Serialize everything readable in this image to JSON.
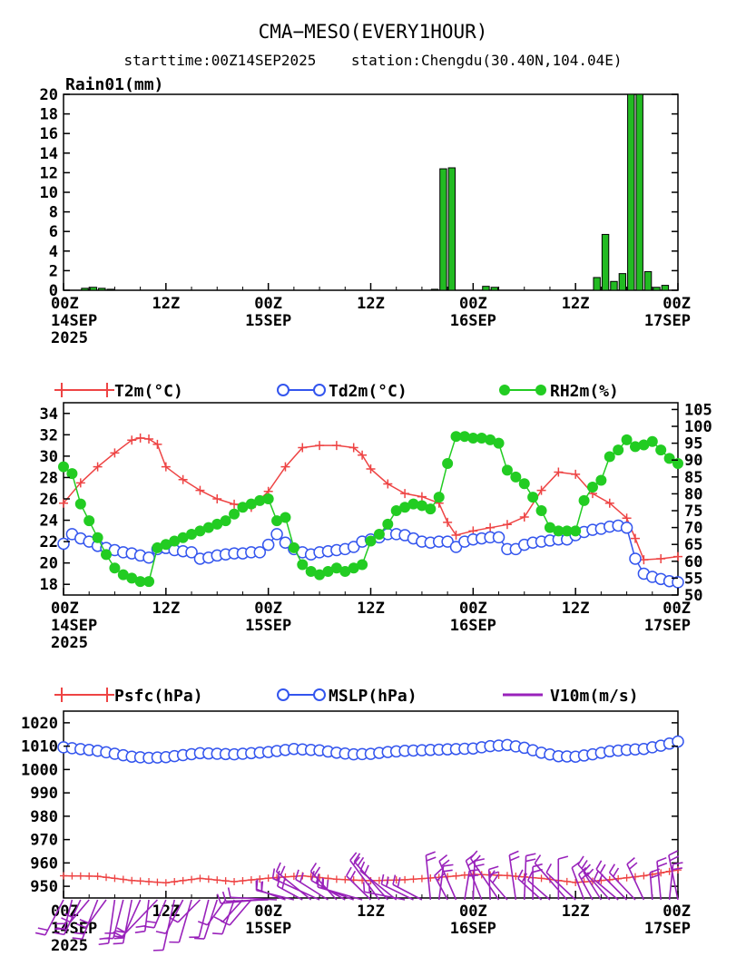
{
  "header": {
    "title": "CMA−MESO(EVERY1HOUR)",
    "subtitle": "starttime:00Z14SEP2025    station:Chengdu(30.40N,104.04E)"
  },
  "x_axis": {
    "ticks": [
      {
        "hour": 0,
        "label": "00Z",
        "date": "14SEP",
        "year": "2025"
      },
      {
        "hour": 12,
        "label": "12Z"
      },
      {
        "hour": 24,
        "label": "00Z",
        "date": "15SEP"
      },
      {
        "hour": 36,
        "label": "12Z"
      },
      {
        "hour": 48,
        "label": "00Z",
        "date": "16SEP"
      },
      {
        "hour": 60,
        "label": "12Z"
      },
      {
        "hour": 72,
        "label": "00Z",
        "date": "17SEP"
      }
    ]
  },
  "colors": {
    "rain": "#22bb22",
    "t2m": "#ee4444",
    "td2m": "#3355ee",
    "rh2m": "#22cc22",
    "psfc": "#ee4444",
    "mslp": "#3355ee",
    "wind": "#9922bb"
  },
  "chart_data": [
    {
      "type": "bar",
      "title": "Rain01(mm)",
      "x_unit": "hours since 00Z14SEP2025",
      "ylim": [
        0,
        20
      ],
      "yticks": [
        0,
        2,
        4,
        6,
        8,
        10,
        12,
        14,
        16,
        18,
        20
      ],
      "bars": [
        {
          "hour": 2.5,
          "value": 0.2
        },
        {
          "hour": 3.5,
          "value": 0.3
        },
        {
          "hour": 4.5,
          "value": 0.2
        },
        {
          "hour": 5.5,
          "value": 0.1
        },
        {
          "hour": 43.5,
          "value": 0.1
        },
        {
          "hour": 44.5,
          "value": 12.4
        },
        {
          "hour": 45.5,
          "value": 12.5
        },
        {
          "hour": 49.5,
          "value": 0.4
        },
        {
          "hour": 50.5,
          "value": 0.3
        },
        {
          "hour": 62.5,
          "value": 1.3
        },
        {
          "hour": 63.5,
          "value": 5.7
        },
        {
          "hour": 64.5,
          "value": 0.9
        },
        {
          "hour": 65.5,
          "value": 1.7
        },
        {
          "hour": 66.5,
          "value": 20
        },
        {
          "hour": 67.5,
          "value": 20
        },
        {
          "hour": 68.5,
          "value": 1.9
        },
        {
          "hour": 69.5,
          "value": 0.3
        },
        {
          "hour": 70.5,
          "value": 0.5
        }
      ]
    },
    {
      "type": "line",
      "x_unit": "hours since 00Z14SEP2025",
      "ylim_left": [
        17,
        35
      ],
      "yticks_left": [
        18,
        20,
        22,
        24,
        26,
        28,
        30,
        32,
        34
      ],
      "ylim_right": [
        50,
        107
      ],
      "yticks_right": [
        50,
        55,
        60,
        65,
        70,
        75,
        80,
        85,
        90,
        95,
        100,
        105
      ],
      "legend": [
        "T2m(°C)",
        "Td2m(°C)",
        "RH2m(%)"
      ],
      "series": [
        {
          "name": "T2m(°C)",
          "axis": "left",
          "marker": "plus",
          "x": [
            0,
            2,
            4,
            6,
            8,
            9,
            10,
            11,
            12,
            14,
            16,
            18,
            20,
            22,
            24,
            26,
            28,
            30,
            32,
            34,
            35,
            36,
            38,
            40,
            42,
            44,
            45,
            46,
            48,
            50,
            52,
            54,
            56,
            58,
            60,
            62,
            64,
            66,
            67,
            68,
            70,
            72
          ],
          "y": [
            25.6,
            27.5,
            29,
            30.3,
            31.5,
            31.7,
            31.6,
            31.1,
            29,
            27.8,
            26.8,
            26,
            25.5,
            25.2,
            26.7,
            29,
            30.8,
            31,
            31,
            30.8,
            30.1,
            28.8,
            27.4,
            26.5,
            26.2,
            25.6,
            23.8,
            22.6,
            23,
            23.3,
            23.6,
            24.3,
            26.8,
            28.5,
            28.3,
            26.5,
            25.6,
            24.2,
            22.3,
            20.3,
            20.4,
            20.6
          ]
        },
        {
          "name": "Td2m(°C)",
          "axis": "left",
          "marker": "circle",
          "x": [
            0,
            1,
            2,
            3,
            4,
            5,
            6,
            7,
            8,
            9,
            10,
            11,
            12,
            13,
            14,
            15,
            16,
            17,
            18,
            19,
            20,
            21,
            22,
            23,
            24,
            25,
            26,
            27,
            28,
            29,
            30,
            31,
            32,
            33,
            34,
            35,
            36,
            37,
            38,
            39,
            40,
            41,
            42,
            43,
            44,
            45,
            46,
            47,
            48,
            49,
            50,
            51,
            52,
            53,
            54,
            55,
            56,
            57,
            58,
            59,
            60,
            61,
            62,
            63,
            64,
            65,
            66,
            67,
            68,
            69,
            70,
            71,
            72
          ],
          "y": [
            21.8,
            22.7,
            22.3,
            22.0,
            21.6,
            21.4,
            21.2,
            21.0,
            20.9,
            20.7,
            20.5,
            21.3,
            21.4,
            21.2,
            21.1,
            21.0,
            20.4,
            20.5,
            20.7,
            20.8,
            20.9,
            20.9,
            21.0,
            21.0,
            21.7,
            22.7,
            21.9,
            21.3,
            21.0,
            20.8,
            21.0,
            21.1,
            21.2,
            21.3,
            21.5,
            22.0,
            22.2,
            22.4,
            22.7,
            22.7,
            22.6,
            22.3,
            22.0,
            21.9,
            22.0,
            22.0,
            21.5,
            22.0,
            22.2,
            22.3,
            22.4,
            22.4,
            21.3,
            21.3,
            21.7,
            21.9,
            22.0,
            22.1,
            22.2,
            22.2,
            22.6,
            22.9,
            23.1,
            23.2,
            23.4,
            23.5,
            23.3,
            20.4,
            19.0,
            18.7,
            18.5,
            18.3,
            18.2
          ]
        },
        {
          "name": "RH2m(%)",
          "axis": "right",
          "marker": "dot",
          "x": [
            0,
            1,
            2,
            3,
            4,
            5,
            6,
            7,
            8,
            9,
            10,
            11,
            12,
            13,
            14,
            15,
            16,
            17,
            18,
            19,
            20,
            21,
            22,
            23,
            24,
            25,
            26,
            27,
            28,
            29,
            30,
            31,
            32,
            33,
            34,
            35,
            36,
            37,
            38,
            39,
            40,
            41,
            42,
            43,
            44,
            45,
            46,
            47,
            48,
            49,
            50,
            51,
            52,
            53,
            54,
            55,
            56,
            57,
            58,
            59,
            60,
            61,
            62,
            63,
            64,
            65,
            66,
            67,
            68,
            69,
            70,
            71,
            72
          ],
          "y": [
            88,
            86,
            77,
            72,
            67,
            62,
            58,
            56,
            55,
            54,
            54,
            64,
            65,
            66,
            67,
            68,
            69,
            70,
            71,
            72,
            74,
            76,
            77,
            78,
            78.5,
            72,
            73,
            64,
            59,
            57,
            56,
            57,
            58,
            57,
            58,
            59,
            66,
            68,
            71,
            75,
            76,
            77,
            76.5,
            75.5,
            79,
            89,
            97,
            97,
            96.5,
            96.5,
            96,
            95,
            87,
            85,
            83,
            79,
            75,
            70,
            69,
            69,
            69,
            78,
            82,
            84,
            91,
            93,
            96,
            94,
            94.5,
            95.5,
            93,
            90.5,
            89
          ]
        }
      ]
    },
    {
      "type": "line",
      "x_unit": "hours since 00Z14SEP2025",
      "ylim": [
        945,
        1025
      ],
      "yticks": [
        950,
        960,
        970,
        980,
        990,
        1000,
        1010,
        1020
      ],
      "legend": [
        "Psfc(hPa)",
        "MSLP(hPa)",
        "V10m(m/s)"
      ],
      "series": [
        {
          "name": "Psfc(hPa)",
          "marker": "plus",
          "x": [
            0,
            4,
            8,
            12,
            16,
            20,
            24,
            28,
            32,
            36,
            40,
            44,
            48,
            52,
            56,
            60,
            64,
            68,
            72
          ],
          "y": [
            954.5,
            954.3,
            952.5,
            951.5,
            953.4,
            952,
            953.5,
            954.5,
            953,
            952.4,
            952.8,
            953.8,
            955.1,
            954.6,
            953.4,
            951.6,
            952.8,
            954.5,
            957
          ]
        },
        {
          "name": "MSLP(hPa)",
          "marker": "circle",
          "x": [
            0,
            4,
            8,
            10,
            12,
            16,
            20,
            24,
            27,
            30,
            32,
            34,
            36,
            38,
            40,
            44,
            48,
            50,
            52,
            54,
            56,
            58,
            60,
            62,
            64,
            66,
            68,
            70,
            72
          ],
          "y": [
            1009.5,
            1008,
            1005.5,
            1005,
            1005.3,
            1007,
            1006.5,
            1007.5,
            1008.8,
            1008.2,
            1007.2,
            1006.5,
            1006.7,
            1007.5,
            1008,
            1008.5,
            1009,
            1010,
            1010.5,
            1009.3,
            1007.2,
            1005.7,
            1005.5,
            1006.5,
            1007.8,
            1008.4,
            1008.8,
            1010.2,
            1012
          ]
        },
        {
          "name": "V10m(m/s)",
          "marker": "barb",
          "note": "wind barbs drawn along bottom of panel; directions vary, stronger barbs during 16SEP and 17SEP"
        }
      ]
    }
  ]
}
